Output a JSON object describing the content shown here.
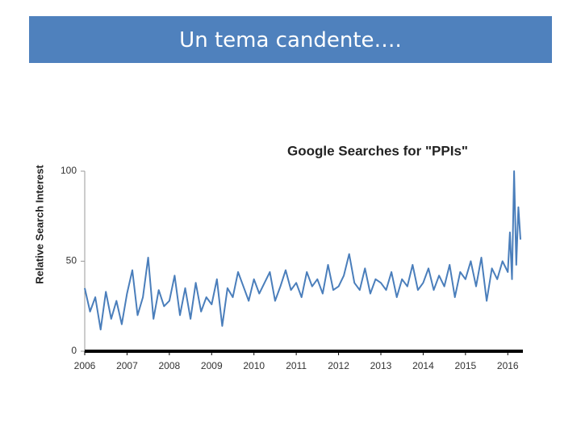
{
  "header": {
    "title": "Un tema candente…."
  },
  "chart_data": {
    "type": "line",
    "title": "Google Searches for \"PPIs\"",
    "y_label": "Relative Search Interest",
    "x": [
      2006,
      2006.125,
      2006.25,
      2006.375,
      2006.5,
      2006.625,
      2006.75,
      2006.875,
      2007,
      2007.125,
      2007.25,
      2007.375,
      2007.5,
      2007.625,
      2007.75,
      2007.875,
      2008,
      2008.125,
      2008.25,
      2008.375,
      2008.5,
      2008.625,
      2008.75,
      2008.875,
      2009,
      2009.125,
      2009.25,
      2009.375,
      2009.5,
      2009.625,
      2009.75,
      2009.875,
      2010,
      2010.125,
      2010.25,
      2010.375,
      2010.5,
      2010.625,
      2010.75,
      2010.875,
      2011,
      2011.125,
      2011.25,
      2011.375,
      2011.5,
      2011.625,
      2011.75,
      2011.875,
      2012,
      2012.125,
      2012.25,
      2012.375,
      2012.5,
      2012.625,
      2012.75,
      2012.875,
      2013,
      2013.125,
      2013.25,
      2013.375,
      2013.5,
      2013.625,
      2013.75,
      2013.875,
      2014,
      2014.125,
      2014.25,
      2014.375,
      2014.5,
      2014.625,
      2014.75,
      2014.875,
      2015,
      2015.125,
      2015.25,
      2015.375,
      2015.5,
      2015.625,
      2015.75,
      2015.875,
      2016,
      2016.05,
      2016.1,
      2016.15,
      2016.2,
      2016.25,
      2016.3
    ],
    "series": [
      {
        "name": "PPIs",
        "color": "#4a7ebb",
        "values": [
          35,
          22,
          30,
          12,
          33,
          18,
          28,
          15,
          32,
          45,
          20,
          30,
          52,
          18,
          34,
          25,
          28,
          42,
          20,
          35,
          18,
          38,
          22,
          30,
          26,
          40,
          14,
          35,
          30,
          44,
          36,
          28,
          40,
          32,
          38,
          44,
          28,
          36,
          45,
          34,
          38,
          30,
          44,
          36,
          40,
          32,
          48,
          34,
          36,
          42,
          54,
          38,
          34,
          46,
          32,
          40,
          38,
          34,
          44,
          30,
          40,
          36,
          48,
          34,
          38,
          46,
          34,
          42,
          36,
          48,
          30,
          44,
          40,
          50,
          36,
          52,
          28,
          46,
          40,
          50,
          44,
          66,
          40,
          100,
          48,
          80,
          62
        ]
      }
    ],
    "xlim": [
      2006,
      2016.3
    ],
    "xticks": [
      2006,
      2007,
      2008,
      2009,
      2010,
      2011,
      2012,
      2013,
      2014,
      2015,
      2016
    ],
    "ylim": [
      0,
      100
    ],
    "yticks": [
      0,
      50,
      100
    ]
  }
}
